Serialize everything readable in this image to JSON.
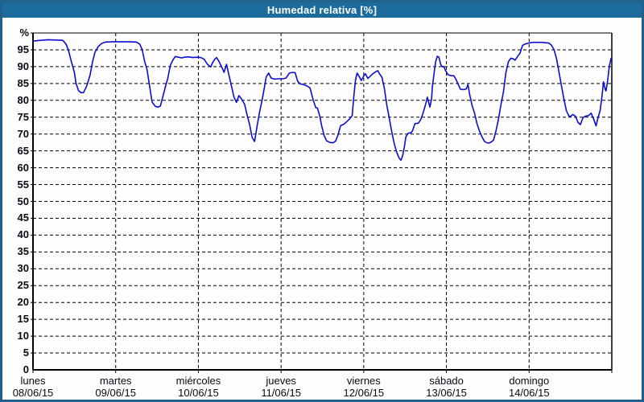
{
  "window": {
    "title": "Humedad relativa [%]",
    "colors": {
      "titlebar_bg": "#1c6b9d",
      "title_text": "#ffffff",
      "window_border": "#21628c",
      "background": "#fcfdfc",
      "line": "#0e0ecf",
      "grid": "#000000",
      "axis_text": "#0a0a14"
    }
  },
  "chart_data": {
    "type": "line",
    "title": "Humedad relativa [%]",
    "legend": "none",
    "grid": "dashed",
    "y_axis": {
      "min": 0,
      "max": 100,
      "tick_step": 5,
      "ticks": [
        {
          "v": 100,
          "label": "%"
        },
        {
          "v": 95,
          "label": "95"
        },
        {
          "v": 90,
          "label": "90"
        },
        {
          "v": 85,
          "label": "85"
        },
        {
          "v": 80,
          "label": "80"
        },
        {
          "v": 75,
          "label": "75"
        },
        {
          "v": 70,
          "label": "70"
        },
        {
          "v": 65,
          "label": "65"
        },
        {
          "v": 60,
          "label": "60"
        },
        {
          "v": 55,
          "label": "55"
        },
        {
          "v": 50,
          "label": "50"
        },
        {
          "v": 45,
          "label": "45"
        },
        {
          "v": 40,
          "label": "40"
        },
        {
          "v": 35,
          "label": "35"
        },
        {
          "v": 30,
          "label": "30"
        },
        {
          "v": 25,
          "label": "25"
        },
        {
          "v": 20,
          "label": "20"
        },
        {
          "v": 15,
          "label": "15"
        },
        {
          "v": 10,
          "label": "10"
        },
        {
          "v": 5,
          "label": "5"
        },
        {
          "v": 0,
          "label": "0"
        }
      ]
    },
    "x_axis": {
      "range_days": [
        0,
        7
      ],
      "days": [
        {
          "name": "lunes",
          "date": "08/06/15"
        },
        {
          "name": "martes",
          "date": "09/06/15"
        },
        {
          "name": "miércoles",
          "date": "10/06/15"
        },
        {
          "name": "jueves",
          "date": "11/06/15"
        },
        {
          "name": "viernes",
          "date": "12/06/15"
        },
        {
          "name": "sábado",
          "date": "13/06/15"
        },
        {
          "name": "domingo",
          "date": "14/06/15"
        }
      ]
    },
    "series": [
      {
        "name": "Humedad relativa",
        "unit": "%",
        "points": [
          [
            0,
            97.6
          ],
          [
            0.09,
            97.8
          ],
          [
            0.18,
            98
          ],
          [
            0.28,
            97.9
          ],
          [
            0.36,
            97.8
          ],
          [
            0.4,
            96.7
          ],
          [
            0.43,
            94.7
          ],
          [
            0.46,
            91.9
          ],
          [
            0.5,
            88.3
          ],
          [
            0.52,
            85.1
          ],
          [
            0.55,
            82.9
          ],
          [
            0.58,
            82.3
          ],
          [
            0.61,
            82.3
          ],
          [
            0.65,
            84.3
          ],
          [
            0.69,
            87.5
          ],
          [
            0.72,
            91.5
          ],
          [
            0.75,
            94.3
          ],
          [
            0.79,
            96
          ],
          [
            0.83,
            96.9
          ],
          [
            0.88,
            97.3
          ],
          [
            0.96,
            97.4
          ],
          [
            1.06,
            97.4
          ],
          [
            1.16,
            97.4
          ],
          [
            1.25,
            97.3
          ],
          [
            1.29,
            96.7
          ],
          [
            1.32,
            95.1
          ],
          [
            1.35,
            91.5
          ],
          [
            1.38,
            89.1
          ],
          [
            1.41,
            84.3
          ],
          [
            1.44,
            79.5
          ],
          [
            1.48,
            78.2
          ],
          [
            1.51,
            78
          ],
          [
            1.54,
            78.3
          ],
          [
            1.57,
            81.1
          ],
          [
            1.6,
            83.9
          ],
          [
            1.63,
            86.5
          ],
          [
            1.66,
            90.3
          ],
          [
            1.69,
            91.9
          ],
          [
            1.72,
            93
          ],
          [
            1.76,
            92.8
          ],
          [
            1.8,
            92.6
          ],
          [
            1.83,
            92.8
          ],
          [
            1.88,
            92.9
          ],
          [
            1.93,
            92.7
          ],
          [
            1.98,
            92.8
          ],
          [
            2.03,
            92.7
          ],
          [
            2.07,
            92.2
          ],
          [
            2.11,
            90.7
          ],
          [
            2.15,
            89.9
          ],
          [
            2.17,
            91.1
          ],
          [
            2.2,
            92.3
          ],
          [
            2.22,
            92.7
          ],
          [
            2.25,
            91.5
          ],
          [
            2.29,
            89.5
          ],
          [
            2.31,
            88.3
          ],
          [
            2.34,
            90.7
          ],
          [
            2.37,
            87.5
          ],
          [
            2.4,
            84.3
          ],
          [
            2.43,
            81
          ],
          [
            2.46,
            79.4
          ],
          [
            2.49,
            81.4
          ],
          [
            2.52,
            80.5
          ],
          [
            2.56,
            78.8
          ],
          [
            2.59,
            75.6
          ],
          [
            2.62,
            72.8
          ],
          [
            2.65,
            69
          ],
          [
            2.68,
            67.8
          ],
          [
            2.71,
            72.4
          ],
          [
            2.74,
            76.5
          ],
          [
            2.77,
            80
          ],
          [
            2.8,
            84
          ],
          [
            2.82,
            87
          ],
          [
            2.85,
            88.1
          ],
          [
            2.88,
            86.6
          ],
          [
            2.92,
            86.3
          ],
          [
            2.97,
            86.4
          ],
          [
            3.02,
            86.4
          ],
          [
            3.06,
            86.6
          ],
          [
            3.1,
            88.1
          ],
          [
            3.14,
            88.3
          ],
          [
            3.17,
            88.2
          ],
          [
            3.2,
            85.7
          ],
          [
            3.23,
            84.9
          ],
          [
            3.27,
            84.7
          ],
          [
            3.31,
            84.3
          ],
          [
            3.35,
            83.7
          ],
          [
            3.39,
            80
          ],
          [
            3.42,
            77.8
          ],
          [
            3.44,
            77.7
          ],
          [
            3.47,
            75.2
          ],
          [
            3.49,
            72.5
          ],
          [
            3.52,
            69.6
          ],
          [
            3.55,
            68
          ],
          [
            3.59,
            67.5
          ],
          [
            3.63,
            67.4
          ],
          [
            3.66,
            67.9
          ],
          [
            3.69,
            69.8
          ],
          [
            3.72,
            72.5
          ],
          [
            3.76,
            72.9
          ],
          [
            3.8,
            73.8
          ],
          [
            3.83,
            74.5
          ],
          [
            3.86,
            75.5
          ],
          [
            3.88,
            81.1
          ],
          [
            3.9,
            86
          ],
          [
            3.92,
            88.1
          ],
          [
            3.95,
            86.9
          ],
          [
            3.97,
            85.9
          ],
          [
            4,
            87.2
          ],
          [
            4.02,
            87.9
          ],
          [
            4.05,
            86.5
          ],
          [
            4.08,
            87.2
          ],
          [
            4.11,
            87.9
          ],
          [
            4.14,
            88.4
          ],
          [
            4.17,
            88.8
          ],
          [
            4.19,
            87.9
          ],
          [
            4.22,
            86.8
          ],
          [
            4.25,
            83.5
          ],
          [
            4.28,
            78.5
          ],
          [
            4.31,
            74.5
          ],
          [
            4.34,
            70.5
          ],
          [
            4.37,
            67
          ],
          [
            4.4,
            64.5
          ],
          [
            4.43,
            62.8
          ],
          [
            4.45,
            62.2
          ],
          [
            4.47,
            63.5
          ],
          [
            4.49,
            66
          ],
          [
            4.51,
            69.2
          ],
          [
            4.54,
            70.3
          ],
          [
            4.57,
            70.3
          ],
          [
            4.59,
            71
          ],
          [
            4.62,
            73.1
          ],
          [
            4.66,
            73.2
          ],
          [
            4.69,
            74.3
          ],
          [
            4.72,
            76.4
          ],
          [
            4.75,
            79
          ],
          [
            4.77,
            80.9
          ],
          [
            4.8,
            78
          ],
          [
            4.82,
            80.3
          ],
          [
            4.83,
            84
          ],
          [
            4.85,
            88
          ],
          [
            4.87,
            91.5
          ],
          [
            4.89,
            93.1
          ],
          [
            4.91,
            92.8
          ],
          [
            4.93,
            90.7
          ],
          [
            4.95,
            90
          ],
          [
            4.97,
            90
          ],
          [
            4.99,
            88.8
          ],
          [
            5.02,
            87.6
          ],
          [
            5.06,
            87.3
          ],
          [
            5.09,
            87.3
          ],
          [
            5.12,
            86
          ],
          [
            5.15,
            84.3
          ],
          [
            5.17,
            83.3
          ],
          [
            5.21,
            83.2
          ],
          [
            5.24,
            83.4
          ],
          [
            5.26,
            84.7
          ],
          [
            5.28,
            81.9
          ],
          [
            5.31,
            78.5
          ],
          [
            5.34,
            76.2
          ],
          [
            5.37,
            73
          ],
          [
            5.4,
            70.8
          ],
          [
            5.43,
            69.2
          ],
          [
            5.46,
            67.8
          ],
          [
            5.49,
            67.4
          ],
          [
            5.51,
            67.3
          ],
          [
            5.54,
            67.6
          ],
          [
            5.57,
            68.2
          ],
          [
            5.6,
            71
          ],
          [
            5.63,
            74.5
          ],
          [
            5.66,
            78.8
          ],
          [
            5.69,
            82.5
          ],
          [
            5.72,
            88.3
          ],
          [
            5.75,
            91.5
          ],
          [
            5.78,
            92.5
          ],
          [
            5.81,
            92.3
          ],
          [
            5.83,
            91.9
          ],
          [
            5.86,
            93
          ],
          [
            5.89,
            94
          ],
          [
            5.92,
            96.3
          ],
          [
            5.95,
            96.7
          ],
          [
            5.98,
            96.9
          ],
          [
            6.01,
            97.1
          ],
          [
            6.05,
            97.2
          ],
          [
            6.09,
            97.2
          ],
          [
            6.13,
            97.2
          ],
          [
            6.16,
            97.2
          ],
          [
            6.2,
            97.1
          ],
          [
            6.24,
            97
          ],
          [
            6.27,
            96.4
          ],
          [
            6.3,
            95.1
          ],
          [
            6.33,
            92.5
          ],
          [
            6.36,
            88.5
          ],
          [
            6.39,
            84.5
          ],
          [
            6.42,
            80.5
          ],
          [
            6.45,
            77
          ],
          [
            6.48,
            75.4
          ],
          [
            6.5,
            75.2
          ],
          [
            6.53,
            75.8
          ],
          [
            6.56,
            75.3
          ],
          [
            6.59,
            73.5
          ],
          [
            6.62,
            72.8
          ],
          [
            6.65,
            74.8
          ],
          [
            6.68,
            75.3
          ],
          [
            6.72,
            75.5
          ],
          [
            6.75,
            76.2
          ],
          [
            6.78,
            74.5
          ],
          [
            6.81,
            72.4
          ],
          [
            6.83,
            74.5
          ],
          [
            6.86,
            77.1
          ],
          [
            6.88,
            81
          ],
          [
            6.9,
            85.5
          ],
          [
            6.92,
            83.3
          ],
          [
            6.93,
            82.8
          ],
          [
            6.95,
            86
          ],
          [
            6.97,
            90.1
          ],
          [
            6.99,
            92.4
          ],
          [
            7,
            92.6
          ]
        ]
      }
    ]
  }
}
